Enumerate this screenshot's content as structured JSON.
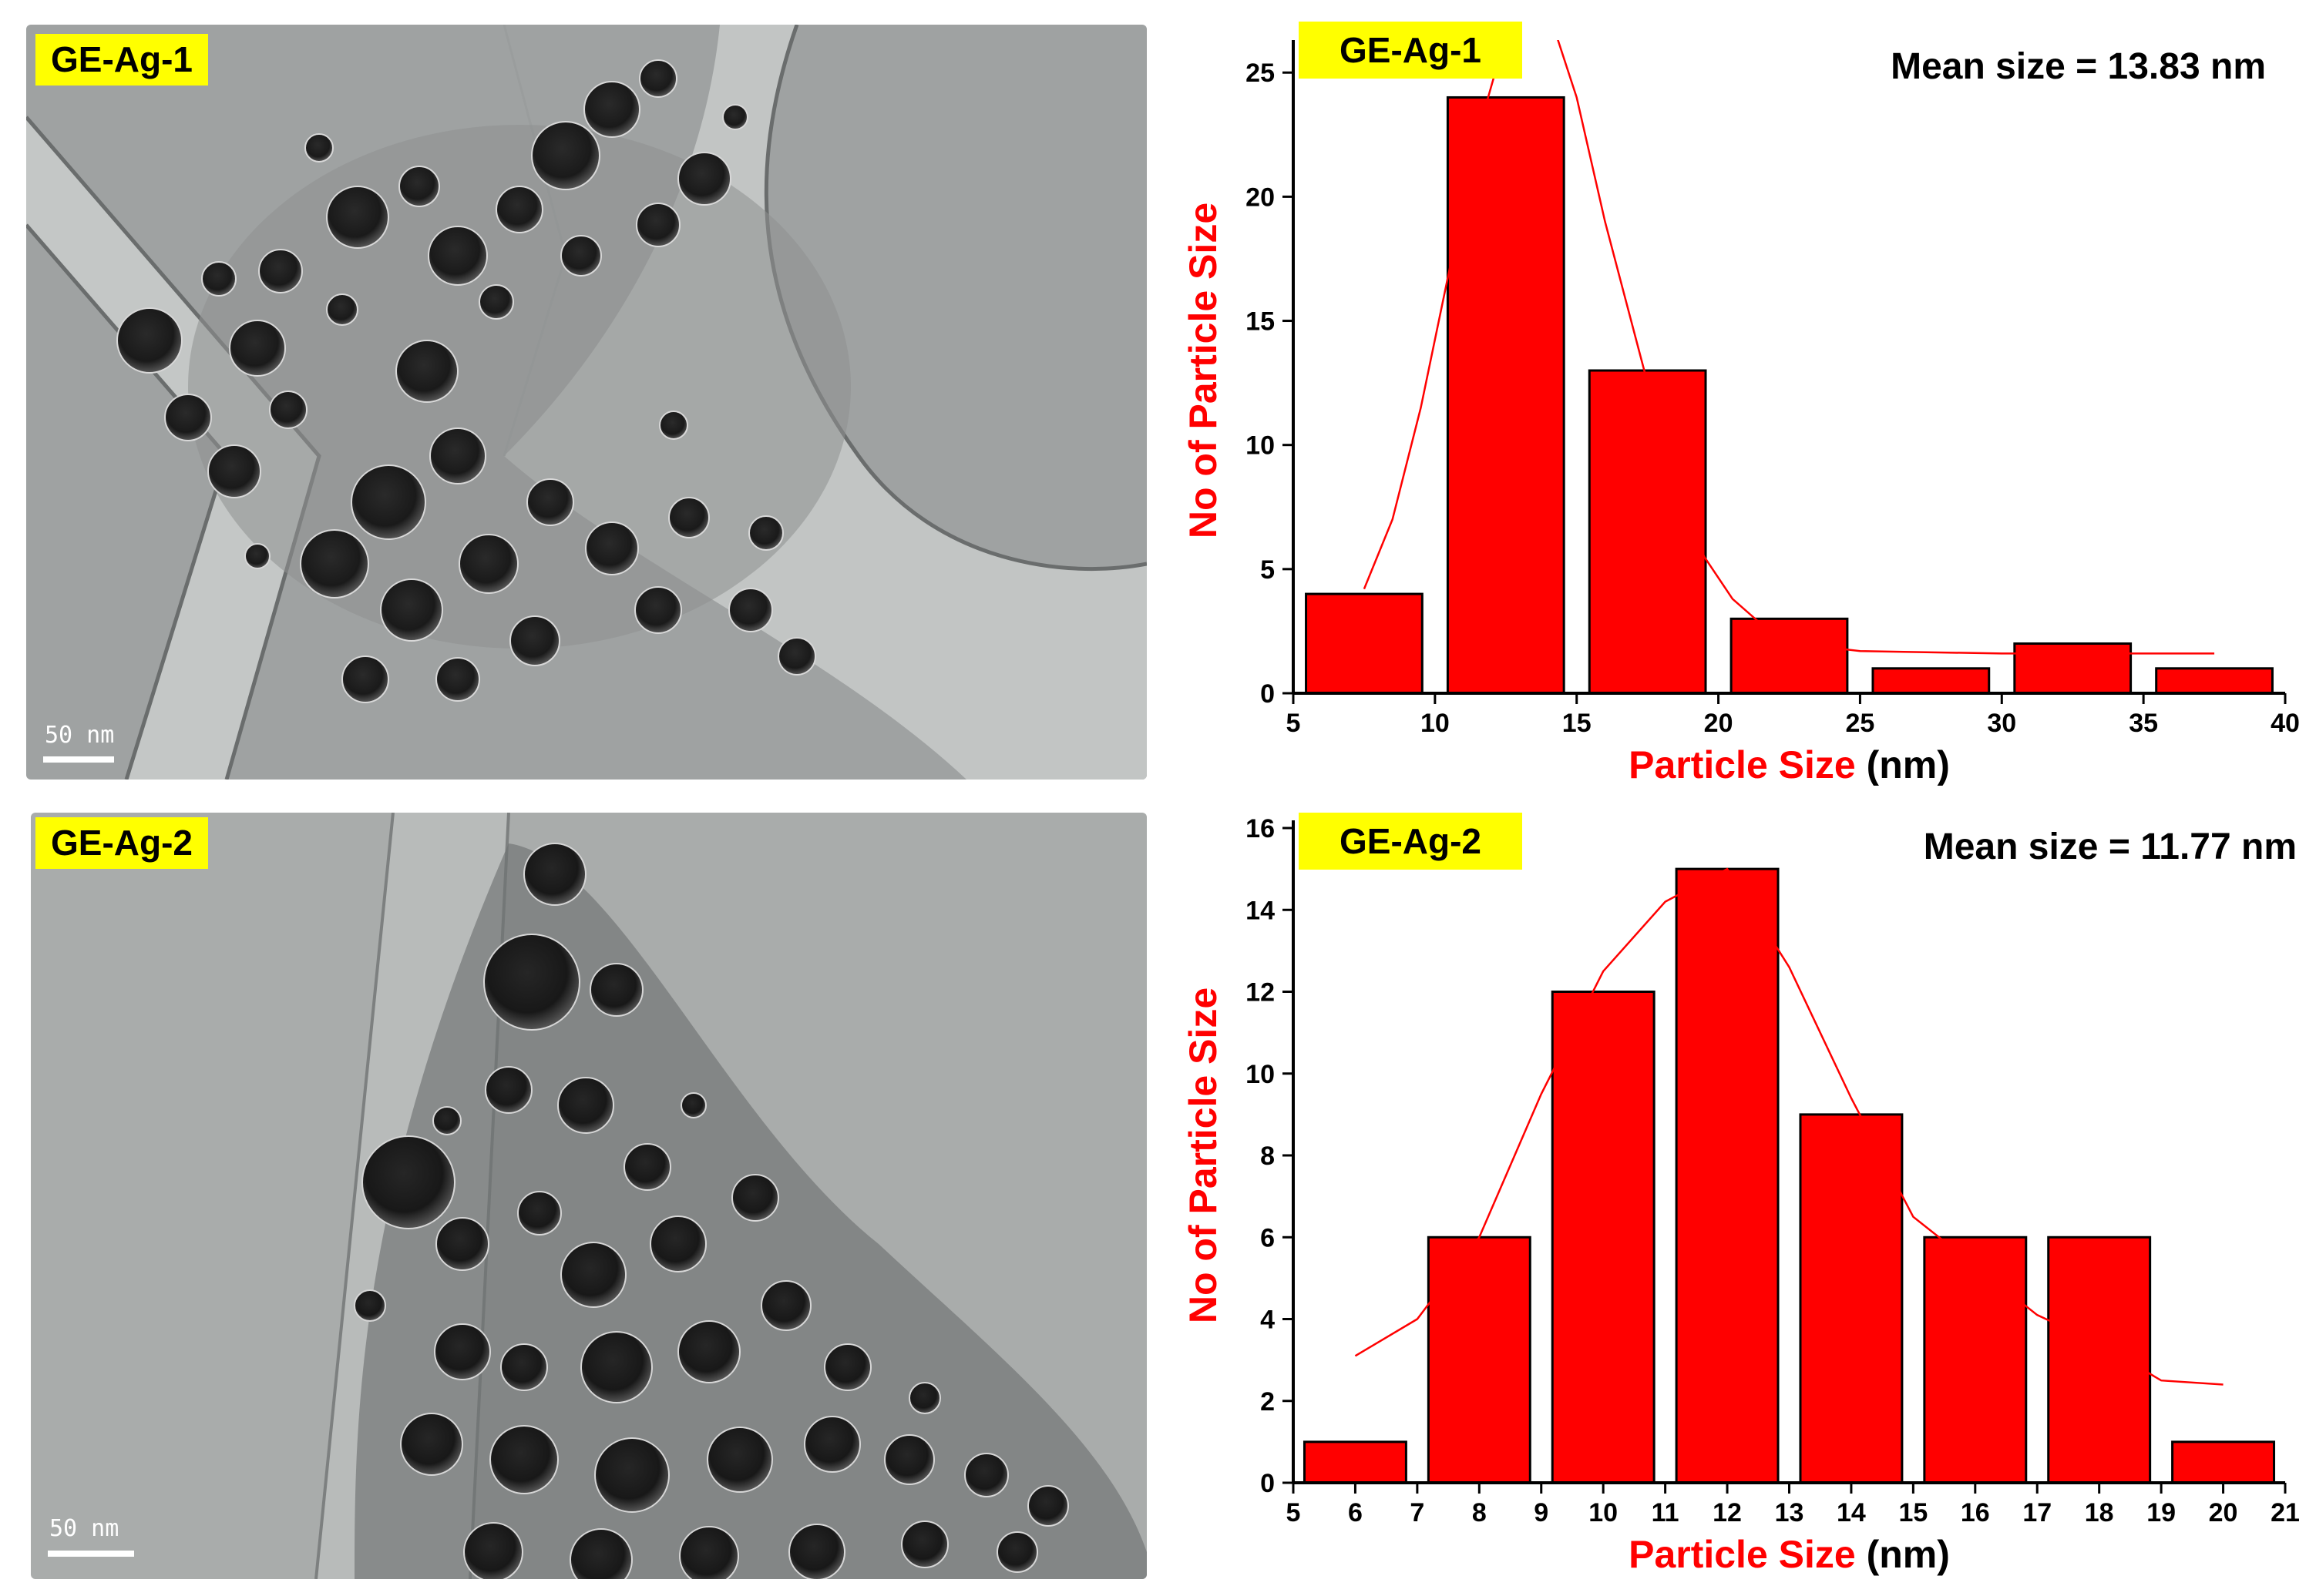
{
  "figure": {
    "panels": [
      {
        "sample_label": "GE-Ag-1",
        "scale_bar": "50 nm",
        "chart_data": {
          "type": "bar",
          "title": "",
          "sample_label": "GE-Ag-1",
          "annotation": "Mean size = 13.83 nm",
          "xlabel_main": "Particle Size",
          "xlabel_unit": "(nm)",
          "ylabel": "No of Particle Size",
          "xlim": [
            5,
            40
          ],
          "ylim": [
            0,
            26
          ],
          "x_ticks": [
            5,
            10,
            15,
            20,
            25,
            30,
            35,
            40
          ],
          "y_ticks": [
            0,
            5,
            10,
            15,
            20,
            25
          ],
          "bin_centers": [
            7.5,
            12.5,
            17.5,
            22.5,
            27.5,
            32.5,
            37.5
          ],
          "bin_width": 5,
          "values": [
            4,
            24,
            13,
            3,
            1,
            2,
            1
          ],
          "fit_curve": {
            "x": [
              7.5,
              8.5,
              9.5,
              10.5,
              11.5,
              12.5,
              13.2,
              14.0,
              15.0,
              16.0,
              17.5,
              18.5,
              19.5,
              20.5,
              21.5,
              22.5,
              23.5,
              25,
              30,
              35,
              37.5
            ],
            "y": [
              4.2,
              7.0,
              11.5,
              17.0,
              22.5,
              26.5,
              28.0,
              27.5,
              24.0,
              19.0,
              12.5,
              8.8,
              5.5,
              3.8,
              2.8,
              2.2,
              1.9,
              1.7,
              1.6,
              1.6,
              1.6
            ]
          },
          "colors": {
            "bar": "#ff0000",
            "axis_label": "#ff0000",
            "fit": "#ff0000"
          }
        }
      },
      {
        "sample_label": "GE-Ag-2",
        "scale_bar": "50 nm",
        "chart_data": {
          "type": "bar",
          "title": "",
          "sample_label": "GE-Ag-2",
          "annotation": "Mean size = 11.77 nm",
          "xlabel_main": "Particle Size",
          "xlabel_unit": "(nm)",
          "ylabel": "No of Particle Size",
          "xlim": [
            5,
            21
          ],
          "ylim": [
            0,
            16
          ],
          "x_ticks": [
            5,
            6,
            7,
            8,
            9,
            10,
            11,
            12,
            13,
            14,
            15,
            16,
            17,
            18,
            19,
            20,
            21
          ],
          "y_ticks": [
            0,
            2,
            4,
            6,
            8,
            10,
            12,
            14,
            16
          ],
          "bin_centers": [
            6,
            8,
            10,
            12,
            14,
            16,
            18,
            20
          ],
          "bin_width": 2,
          "values": [
            1,
            6,
            12,
            15,
            9,
            6,
            6,
            1
          ],
          "fit_curve": {
            "x": [
              6,
              7,
              8,
              9,
              10,
              11,
              12,
              13,
              14,
              15,
              16,
              17,
              18,
              19,
              20
            ],
            "y": [
              3.1,
              4.0,
              6.0,
              9.5,
              12.5,
              14.2,
              15.0,
              12.6,
              9.4,
              6.5,
              5.3,
              4.1,
              3.4,
              2.5,
              2.4
            ]
          },
          "colors": {
            "bar": "#ff0000",
            "axis_label": "#ff0000",
            "fit": "#ff0000"
          }
        }
      }
    ]
  }
}
